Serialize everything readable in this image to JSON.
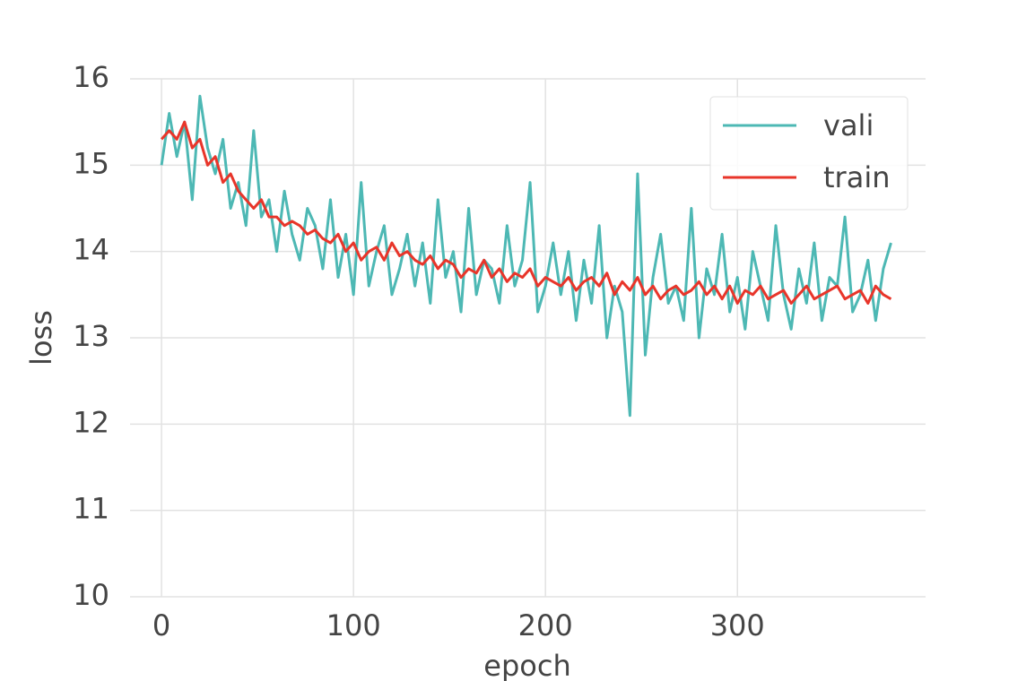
{
  "chart_data": {
    "type": "line",
    "xlabel": "epoch",
    "ylabel": "loss",
    "x": [
      0,
      4,
      8,
      12,
      16,
      20,
      24,
      28,
      32,
      36,
      40,
      44,
      48,
      52,
      56,
      60,
      64,
      68,
      72,
      76,
      80,
      84,
      88,
      92,
      96,
      100,
      104,
      108,
      112,
      116,
      120,
      124,
      128,
      132,
      136,
      140,
      144,
      148,
      152,
      156,
      160,
      164,
      168,
      172,
      176,
      180,
      184,
      188,
      192,
      196,
      200,
      204,
      208,
      212,
      216,
      220,
      224,
      228,
      232,
      236,
      240,
      244,
      248,
      252,
      256,
      260,
      264,
      268,
      272,
      276,
      280,
      284,
      288,
      292,
      296,
      300,
      304,
      308,
      312,
      316,
      320,
      324,
      328,
      332,
      336,
      340,
      344,
      348,
      352,
      356,
      360,
      364,
      368,
      372,
      376,
      380
    ],
    "series": [
      {
        "name": "vali",
        "color": "#4db8b4",
        "values": [
          15.0,
          15.6,
          15.1,
          15.5,
          14.6,
          15.8,
          15.2,
          14.9,
          15.3,
          14.5,
          14.8,
          14.3,
          15.4,
          14.4,
          14.6,
          14.0,
          14.7,
          14.2,
          13.9,
          14.5,
          14.3,
          13.8,
          14.6,
          13.7,
          14.2,
          13.5,
          14.8,
          13.6,
          14.0,
          14.3,
          13.5,
          13.8,
          14.2,
          13.6,
          14.1,
          13.4,
          14.6,
          13.7,
          14.0,
          13.3,
          14.5,
          13.5,
          13.9,
          13.8,
          13.4,
          14.3,
          13.6,
          13.9,
          14.8,
          13.3,
          13.6,
          14.1,
          13.5,
          14.0,
          13.2,
          13.9,
          13.4,
          14.3,
          13.0,
          13.6,
          13.3,
          12.1,
          14.9,
          12.8,
          13.7,
          14.2,
          13.4,
          13.6,
          13.2,
          14.5,
          13.0,
          13.8,
          13.5,
          14.2,
          13.3,
          13.7,
          13.1,
          14.0,
          13.6,
          13.2,
          14.3,
          13.5,
          13.1,
          13.8,
          13.4,
          14.1,
          13.2,
          13.7,
          13.6,
          14.4,
          13.3,
          13.5,
          13.9,
          13.2,
          13.8,
          14.1
        ]
      },
      {
        "name": "train",
        "color": "#e8352a",
        "values": [
          15.3,
          15.4,
          15.3,
          15.5,
          15.2,
          15.3,
          15.0,
          15.1,
          14.8,
          14.9,
          14.7,
          14.6,
          14.5,
          14.6,
          14.4,
          14.4,
          14.3,
          14.35,
          14.3,
          14.2,
          14.25,
          14.15,
          14.1,
          14.2,
          14.0,
          14.1,
          13.9,
          14.0,
          14.05,
          13.9,
          14.1,
          13.95,
          14.0,
          13.9,
          13.85,
          13.95,
          13.8,
          13.9,
          13.85,
          13.7,
          13.8,
          13.75,
          13.9,
          13.7,
          13.8,
          13.65,
          13.75,
          13.7,
          13.8,
          13.6,
          13.7,
          13.65,
          13.6,
          13.7,
          13.55,
          13.65,
          13.7,
          13.6,
          13.75,
          13.5,
          13.65,
          13.55,
          13.7,
          13.5,
          13.6,
          13.45,
          13.55,
          13.6,
          13.5,
          13.55,
          13.65,
          13.5,
          13.6,
          13.45,
          13.6,
          13.4,
          13.55,
          13.5,
          13.6,
          13.45,
          13.5,
          13.55,
          13.4,
          13.5,
          13.6,
          13.45,
          13.5,
          13.55,
          13.6,
          13.45,
          13.5,
          13.55,
          13.4,
          13.6,
          13.5,
          13.45
        ]
      }
    ],
    "xlim": [
      -16.4,
      398
    ],
    "xticks": [
      0,
      100,
      200,
      300
    ],
    "ylim": [
      10,
      16
    ],
    "yticks": [
      10,
      11,
      12,
      13,
      14,
      15,
      16
    ],
    "grid": true,
    "legend": "upper right"
  }
}
